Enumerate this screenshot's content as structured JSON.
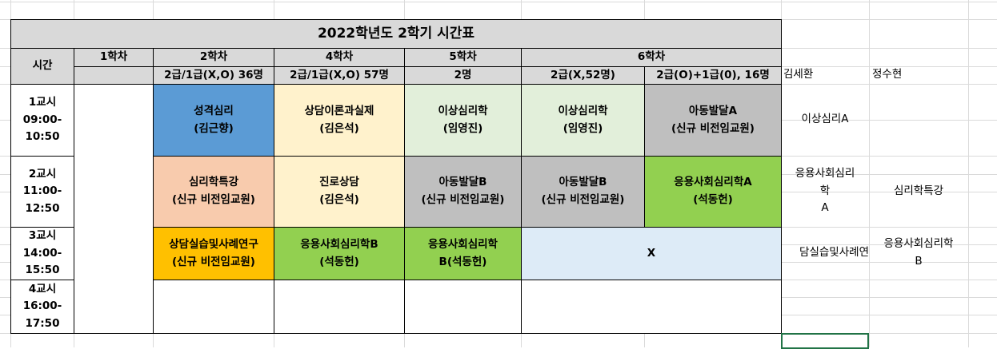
{
  "title": "2022학년도 2학기 시간표",
  "header": {
    "time_label": "시간",
    "terms": [
      "1학차",
      "2학차",
      "4학차",
      "5학차",
      "6학차"
    ],
    "groups": [
      "",
      "2급/1급(X,O) 36명",
      "2급/1급(X,O) 57명",
      "2명",
      "2급(X,52명)",
      "2급(O)+1급(0), 16명"
    ]
  },
  "periods": [
    {
      "label": "1교시\n09:00-\n10:50"
    },
    {
      "label": "2교시\n11:00-\n12:50"
    },
    {
      "label": "3교시\n14:00-\n15:50"
    },
    {
      "label": "4교시\n16:00-\n17:50"
    }
  ],
  "courses": {
    "p1": [
      "",
      "성격심리\n(김근향)",
      "상담이론과실제\n(김은석)",
      "이상심리학\n(임영진)",
      "이상심리학\n(임영진)",
      "아동발달A\n(신규 비전임교원)"
    ],
    "p2": [
      "",
      "심리학특강\n(신규 비전임교원)",
      "진로상담\n(김은석)",
      "아동발달B\n(신규 비전임교원)",
      "아동발달B\n(신규 비전임교원)",
      "응용사회심리학A\n(석동헌)"
    ],
    "p3": [
      "",
      "상담실습및사례연구\n(신규 비전임교원)",
      "응용사회심리학B\n(석동헌)",
      "응용사회심리학\nB(석동헌)",
      "X"
    ],
    "p4": [
      "",
      "",
      "",
      "",
      ""
    ]
  },
  "side": {
    "names": [
      "김세환",
      "정수현"
    ],
    "p1": [
      "이상심리A",
      ""
    ],
    "p2": [
      "응용사회심리\n학\nA",
      "심리학특강"
    ],
    "p3": [
      "담실습및사례연",
      "응용사회심리학\nB"
    ]
  },
  "colors": {
    "header": "#d9d9d9",
    "blue": "#5b9bd5",
    "peach": "#f8cbad",
    "cream": "#fff2cc",
    "light_green": "#e2efda",
    "gray": "#bfbfbf",
    "green": "#92d050",
    "orange": "#ffc000",
    "light_blue": "#ddebf7"
  }
}
